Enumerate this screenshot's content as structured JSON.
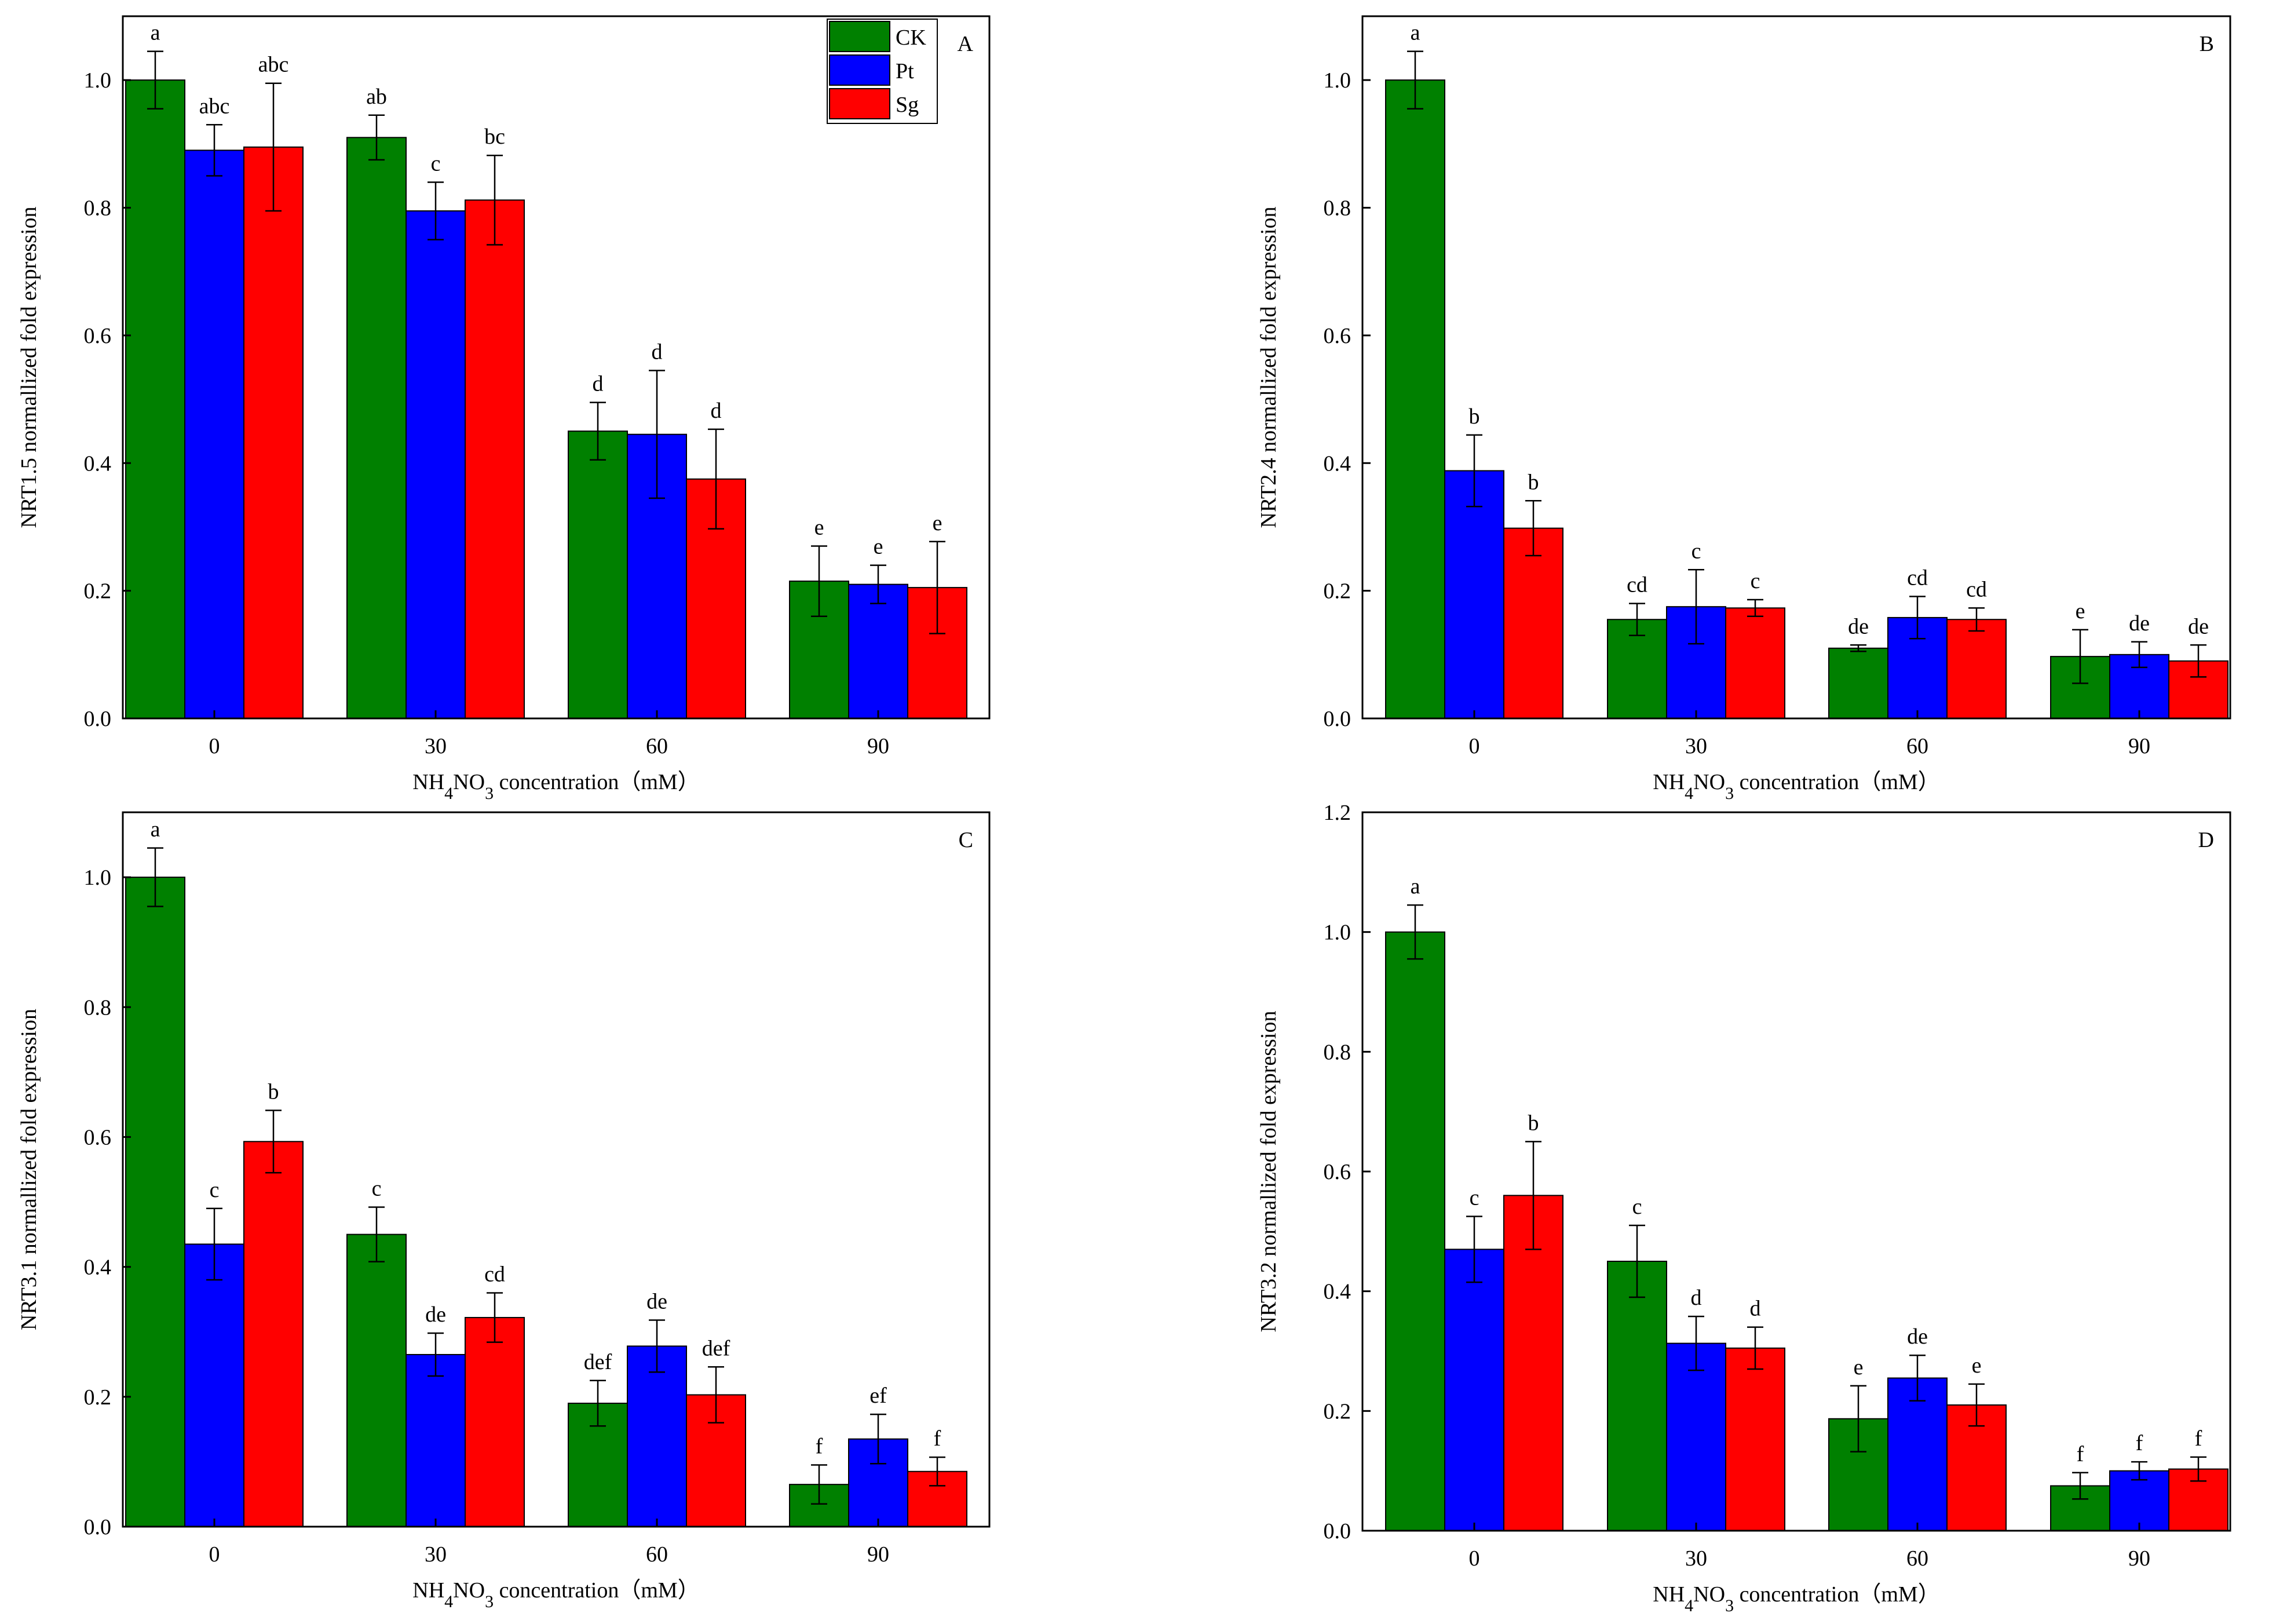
{
  "colors": {
    "CK": "#008000",
    "Pt": "#0000ff",
    "Sg": "#ff0000",
    "axis": "#000000"
  },
  "chart_data": [
    {
      "type": "bar",
      "panel": "A",
      "ylabel": "NRT1.5 normallized fold expression",
      "xlabel_parts": [
        "NH",
        "4",
        "NO",
        "3",
        " concentration（mM）"
      ],
      "categories": [
        "0",
        "30",
        "60",
        "90"
      ],
      "ylim": [
        0,
        1.1
      ],
      "yticks": [
        "0.0",
        "0.2",
        "0.4",
        "0.6",
        "0.8",
        "1.0"
      ],
      "yticks_values": [
        0,
        0.2,
        0.4,
        0.6,
        0.8,
        1.0
      ],
      "legend": {
        "position": "top-right",
        "entries": [
          "CK",
          "Pt",
          "Sg"
        ]
      },
      "series": [
        {
          "name": "CK",
          "values": [
            1.0,
            0.91,
            0.45,
            0.215
          ],
          "errors": [
            0.045,
            0.035,
            0.045,
            0.055
          ],
          "letters": [
            "a",
            "ab",
            "d",
            "e"
          ]
        },
        {
          "name": "Pt",
          "values": [
            0.89,
            0.795,
            0.445,
            0.21
          ],
          "errors": [
            0.04,
            0.045,
            0.1,
            0.03
          ],
          "letters": [
            "abc",
            "c",
            "d",
            "e"
          ]
        },
        {
          "name": "Sg",
          "values": [
            0.895,
            0.812,
            0.375,
            0.205
          ],
          "errors": [
            0.1,
            0.07,
            0.078,
            0.072
          ],
          "letters": [
            "abc",
            "bc",
            "d",
            "e"
          ]
        }
      ]
    },
    {
      "type": "bar",
      "panel": "B",
      "ylabel": "NRT2.4 normallized fold expression",
      "xlabel_parts": [
        "NH",
        "4",
        "NO",
        "3",
        " concentration（mM）"
      ],
      "categories": [
        "0",
        "30",
        "60",
        "90"
      ],
      "ylim": [
        0,
        1.1
      ],
      "yticks": [
        "0.0",
        "0.2",
        "0.4",
        "0.6",
        "0.8",
        "1.0"
      ],
      "yticks_values": [
        0,
        0.2,
        0.4,
        0.6,
        0.8,
        1.0
      ],
      "legend": null,
      "series": [
        {
          "name": "CK",
          "values": [
            1.0,
            0.155,
            0.11,
            0.097
          ],
          "errors": [
            0.045,
            0.025,
            0.005,
            0.042
          ],
          "letters": [
            "a",
            "cd",
            "de",
            "e"
          ]
        },
        {
          "name": "Pt",
          "values": [
            0.388,
            0.175,
            0.158,
            0.1
          ],
          "errors": [
            0.056,
            0.058,
            0.033,
            0.02
          ],
          "letters": [
            "b",
            "c",
            "cd",
            "de"
          ]
        },
        {
          "name": "Sg",
          "values": [
            0.298,
            0.173,
            0.155,
            0.09
          ],
          "errors": [
            0.043,
            0.013,
            0.018,
            0.025
          ],
          "letters": [
            "b",
            "c",
            "cd",
            "de"
          ]
        }
      ]
    },
    {
      "type": "bar",
      "panel": "C",
      "ylabel": "NRT3.1 normallized fold expression",
      "xlabel_parts": [
        "NH",
        "4",
        "NO",
        "3",
        " concentration（mM）"
      ],
      "categories": [
        "0",
        "30",
        "60",
        "90"
      ],
      "ylim": [
        0,
        1.1
      ],
      "yticks": [
        "0.0",
        "0.2",
        "0.4",
        "0.6",
        "0.8",
        "1.0"
      ],
      "yticks_values": [
        0,
        0.2,
        0.4,
        0.6,
        0.8,
        1.0
      ],
      "legend": null,
      "series": [
        {
          "name": "CK",
          "values": [
            1.0,
            0.45,
            0.19,
            0.065
          ],
          "errors": [
            0.045,
            0.042,
            0.035,
            0.03
          ],
          "letters": [
            "a",
            "c",
            "def",
            "f"
          ]
        },
        {
          "name": "Pt",
          "values": [
            0.435,
            0.265,
            0.278,
            0.135
          ],
          "errors": [
            0.055,
            0.033,
            0.04,
            0.038
          ],
          "letters": [
            "c",
            "de",
            "de",
            "ef"
          ]
        },
        {
          "name": "Sg",
          "values": [
            0.593,
            0.322,
            0.203,
            0.085
          ],
          "errors": [
            0.048,
            0.038,
            0.043,
            0.022
          ],
          "letters": [
            "b",
            "cd",
            "def",
            "f"
          ]
        }
      ]
    },
    {
      "type": "bar",
      "panel": "D",
      "ylabel": "NRT3.2 normallized fold expression",
      "xlabel_parts": [
        "NH",
        "4",
        "NO",
        "3",
        " concentration（mM）"
      ],
      "categories": [
        "0",
        "30",
        "60",
        "90"
      ],
      "ylim": [
        0,
        1.2
      ],
      "yticks": [
        "0.0",
        "0.2",
        "0.4",
        "0.6",
        "0.8",
        "1.0",
        "1.2"
      ],
      "yticks_values": [
        0,
        0.2,
        0.4,
        0.6,
        0.8,
        1.0,
        1.2
      ],
      "legend": null,
      "series": [
        {
          "name": "CK",
          "values": [
            1.0,
            0.45,
            0.187,
            0.075
          ],
          "errors": [
            0.045,
            0.06,
            0.055,
            0.022
          ],
          "letters": [
            "a",
            "c",
            "e",
            "f"
          ]
        },
        {
          "name": "Pt",
          "values": [
            0.47,
            0.313,
            0.255,
            0.1
          ],
          "errors": [
            0.055,
            0.045,
            0.038,
            0.015
          ],
          "letters": [
            "c",
            "d",
            "de",
            "f"
          ]
        },
        {
          "name": "Sg",
          "values": [
            0.56,
            0.305,
            0.21,
            0.103
          ],
          "errors": [
            0.09,
            0.035,
            0.035,
            0.02
          ],
          "letters": [
            "b",
            "d",
            "e",
            "f"
          ]
        }
      ]
    }
  ]
}
